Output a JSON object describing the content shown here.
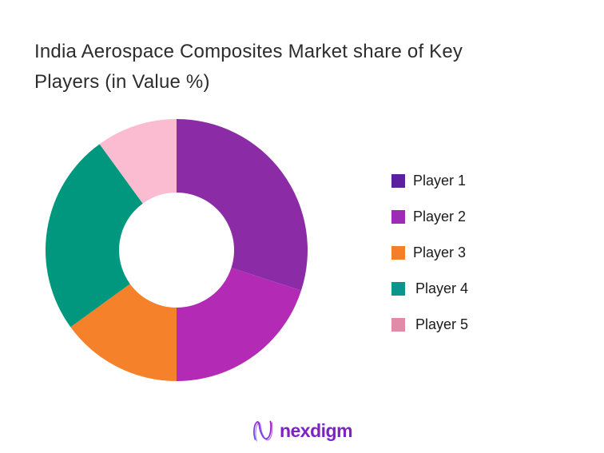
{
  "title": {
    "text": "India Aerospace Composites Market share of Key\nPlayers (in Value %)"
  },
  "chart_data": {
    "type": "pie",
    "subtype": "donut",
    "title": "India Aerospace Composites Market share of Key Players (in Value %)",
    "unit": "value %",
    "categories": [
      "Player 1",
      "Player 2",
      "Player 3",
      "Player 4",
      "Player 5"
    ],
    "values": [
      30,
      20,
      15,
      25,
      10
    ],
    "colors": [
      "#8b2ba6",
      "#b32bb4",
      "#f5822a",
      "#00977f",
      "#fbbcd1"
    ],
    "start_angle_deg": 0,
    "direction": "clockwise",
    "inner_radius_ratio": 0.44,
    "legend_position": "right",
    "data_labels": "none"
  },
  "legend": {
    "items": [
      {
        "label": "Player 1",
        "color": "#5e1f9e"
      },
      {
        "label": "Player 2",
        "color": "#9c2bb5"
      },
      {
        "label": "Player 3",
        "color": "#f57e28"
      },
      {
        "label": "Player 4",
        "color": "#0a968c"
      },
      {
        "label": "Player 5",
        "color": "#e08ca8"
      }
    ]
  },
  "footer": {
    "brand": "nexdigm",
    "brand_color": "#7e22c6",
    "logo_icon": "nexdigm-wave-n-icon"
  }
}
